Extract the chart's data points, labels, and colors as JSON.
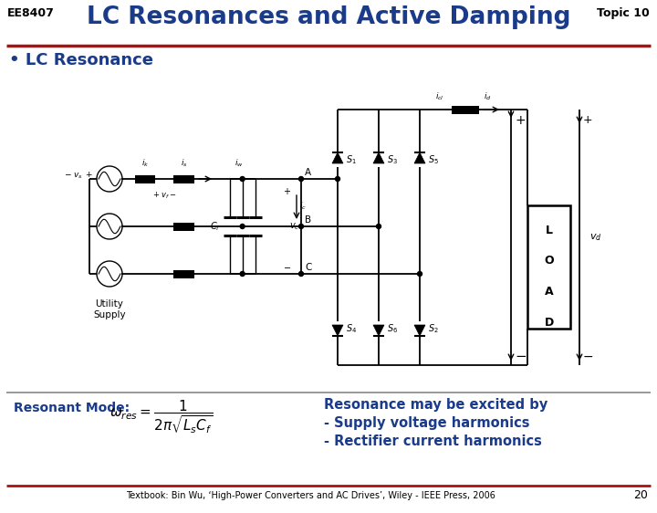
{
  "title": "LC Resonances and Active Damping",
  "course_code": "EE8407",
  "topic": "Topic 10",
  "bullet": "• LC Resonance",
  "resonant_mode_label": "Resonant Mode:",
  "resonance_text_line1": "Resonance may be excited by",
  "resonance_text_line2": "- Supply voltage harmonics",
  "resonance_text_line3": "- Rectifier current harmonics",
  "footer": "Textbook: Bin Wu, ‘High-Power Converters and AC Drives’, Wiley - IEEE Press, 2006",
  "page_number": "20",
  "title_color": "#1a3a8a",
  "red_color": "#aa1111",
  "black": "#000000",
  "blue_color": "#1a3a8a"
}
